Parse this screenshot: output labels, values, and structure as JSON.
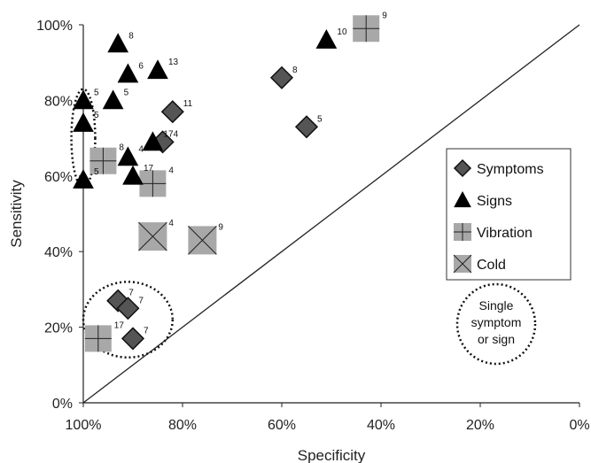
{
  "chart_data": {
    "type": "scatter",
    "title": "",
    "xlabel": "Specificity",
    "ylabel": "Sensitivity",
    "xlim": [
      100,
      0
    ],
    "ylim": [
      0,
      100
    ],
    "x_reversed": true,
    "x_ticks": [
      "100%",
      "80%",
      "60%",
      "40%",
      "20%",
      "0%"
    ],
    "x_tick_values": [
      100,
      80,
      60,
      40,
      20,
      0
    ],
    "y_ticks": [
      "0%",
      "20%",
      "40%",
      "60%",
      "80%",
      "100%"
    ],
    "y_tick_values": [
      0,
      20,
      40,
      60,
      80,
      100
    ],
    "reference_line": [
      [
        100,
        0
      ],
      [
        0,
        100
      ]
    ],
    "legend": {
      "placement": "right",
      "entries": [
        {
          "name": "Symptoms",
          "marker": "diamond"
        },
        {
          "name": "Signs",
          "marker": "triangle"
        },
        {
          "name": "Vibration",
          "marker": "square-plus"
        },
        {
          "name": "Cold",
          "marker": "square-x"
        }
      ]
    },
    "series": [
      {
        "name": "Symptoms",
        "marker": "diamond",
        "points": [
          {
            "x": 60,
            "y": 86,
            "label": "8"
          },
          {
            "x": 55,
            "y": 73,
            "label": "5"
          },
          {
            "x": 82,
            "y": 77,
            "label": "11"
          },
          {
            "x": 84,
            "y": 69,
            "label": "4"
          },
          {
            "x": 93,
            "y": 27,
            "label": "7"
          },
          {
            "x": 91,
            "y": 25,
            "label": "7"
          },
          {
            "x": 90,
            "y": 17,
            "label": "7"
          }
        ]
      },
      {
        "name": "Signs",
        "marker": "triangle",
        "points": [
          {
            "x": 51,
            "y": 96,
            "label": "10"
          },
          {
            "x": 93,
            "y": 95,
            "label": "8"
          },
          {
            "x": 91,
            "y": 87,
            "label": "6"
          },
          {
            "x": 85,
            "y": 88,
            "label": "13"
          },
          {
            "x": 100,
            "y": 80,
            "label": "5"
          },
          {
            "x": 94,
            "y": 80,
            "label": "5"
          },
          {
            "x": 100,
            "y": 74,
            "label": "5"
          },
          {
            "x": 86,
            "y": 69,
            "label": "17"
          },
          {
            "x": 91,
            "y": 65,
            "label": "4"
          },
          {
            "x": 90,
            "y": 60,
            "label": "17"
          },
          {
            "x": 100,
            "y": 59,
            "label": "5"
          }
        ]
      },
      {
        "name": "Vibration",
        "marker": "square-plus",
        "points": [
          {
            "x": 43,
            "y": 99,
            "label": "9"
          },
          {
            "x": 96,
            "y": 64,
            "label": "8"
          },
          {
            "x": 86,
            "y": 58,
            "label": "4"
          },
          {
            "x": 97,
            "y": 17,
            "label": "17"
          }
        ]
      },
      {
        "name": "Cold",
        "marker": "square-x",
        "points": [
          {
            "x": 86,
            "y": 44,
            "label": "4"
          },
          {
            "x": 76,
            "y": 43,
            "label": "9"
          }
        ]
      }
    ],
    "annotations": [
      {
        "kind": "dotted-ellipse",
        "cx": 100,
        "cy": 70,
        "rx_units": 2.4,
        "ry_units": 13
      },
      {
        "kind": "dotted-circle",
        "cx": 91,
        "cy": 22,
        "rx_units": 9,
        "ry_units": 10
      },
      {
        "kind": "dotted-circle-legend",
        "text_lines": [
          "Single",
          "symptom",
          "or sign"
        ]
      }
    ]
  }
}
